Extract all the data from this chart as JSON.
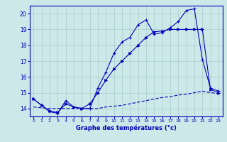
{
  "xlabel": "Graphe des températures (°c)",
  "xlim": [
    -0.5,
    23.5
  ],
  "ylim": [
    13.5,
    20.5
  ],
  "yticks": [
    14,
    15,
    16,
    17,
    18,
    19,
    20
  ],
  "xticks": [
    0,
    1,
    2,
    3,
    4,
    5,
    6,
    7,
    8,
    9,
    10,
    11,
    12,
    13,
    14,
    15,
    16,
    17,
    18,
    19,
    20,
    21,
    22,
    23
  ],
  "bg_color": "#cce8e8",
  "grid_color": "#aacccc",
  "line_color": "#0000bb",
  "line1_y": [
    14.6,
    14.2,
    13.8,
    13.7,
    14.5,
    14.1,
    14.0,
    14.0,
    15.3,
    16.3,
    17.5,
    18.2,
    18.5,
    19.3,
    19.6,
    18.7,
    18.8,
    19.1,
    19.5,
    20.2,
    20.3,
    17.1,
    15.3,
    15.1
  ],
  "line2_y": [
    14.6,
    14.2,
    13.85,
    13.75,
    14.3,
    14.1,
    14.0,
    14.3,
    15.0,
    15.8,
    16.5,
    17.0,
    17.5,
    18.0,
    18.5,
    18.85,
    18.9,
    19.0,
    19.0,
    19.0,
    19.0,
    19.0,
    15.2,
    15.0
  ],
  "line3_y": [
    14.1,
    14.05,
    14.0,
    14.0,
    14.0,
    14.0,
    14.0,
    14.0,
    14.0,
    14.1,
    14.15,
    14.2,
    14.3,
    14.4,
    14.5,
    14.6,
    14.7,
    14.75,
    14.85,
    14.9,
    15.0,
    15.1,
    15.0,
    14.95
  ]
}
